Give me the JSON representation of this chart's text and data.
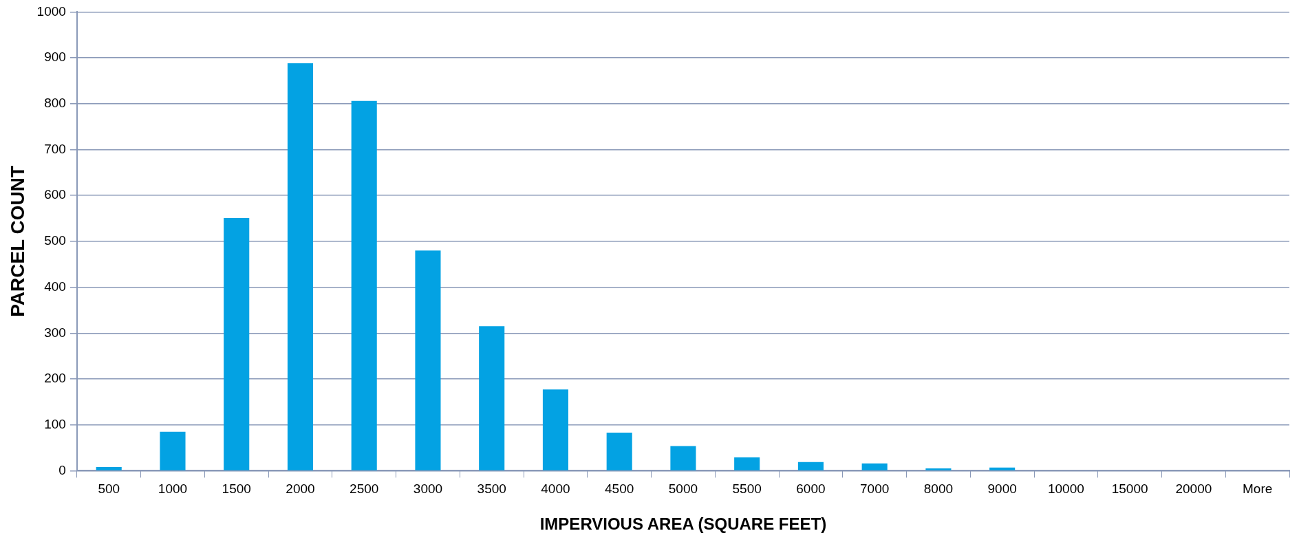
{
  "chart_data": {
    "type": "bar",
    "xlabel": "IMPERVIOUS AREA (SQUARE FEET)",
    "ylabel": "PARCEL COUNT",
    "categories": [
      "500",
      "1000",
      "1500",
      "2000",
      "2500",
      "3000",
      "3500",
      "4000",
      "4500",
      "5000",
      "5500",
      "6000",
      "7000",
      "8000",
      "9000",
      "10000",
      "15000",
      "20000",
      "More"
    ],
    "values": [
      8,
      85,
      551,
      888,
      806,
      480,
      315,
      177,
      83,
      54,
      29,
      19,
      16,
      5,
      7,
      0,
      0,
      0,
      0
    ],
    "color": "#03a2e3",
    "ylim": [
      0,
      1000
    ],
    "yticks": [
      0,
      100,
      200,
      300,
      400,
      500,
      600,
      700,
      800,
      900,
      1000
    ],
    "grid": "y",
    "legend": false
  }
}
